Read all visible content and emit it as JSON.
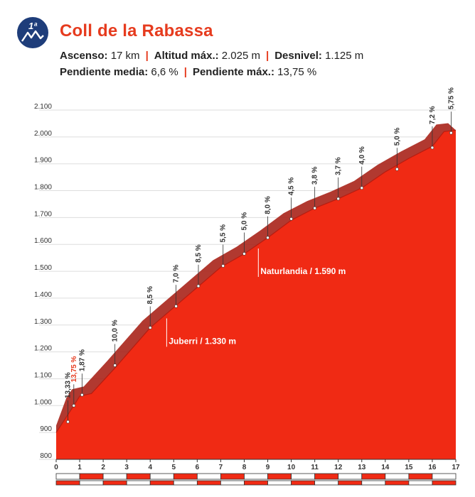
{
  "header": {
    "category_badge": "1ª",
    "title": "Coll de la Rabassa",
    "stats": [
      {
        "label": "Ascenso:",
        "value": "17 km"
      },
      {
        "label": "Altitud máx.:",
        "value": "2.025 m"
      },
      {
        "label": "Desnivel:",
        "value": "1.125 m"
      },
      {
        "label": "Pendiente media:",
        "value": "6,6 %"
      },
      {
        "label": "Pendiente máx.:",
        "value": "13,75 %"
      }
    ]
  },
  "colors": {
    "title": "#e63b1e",
    "badge": "#1e3d7a",
    "profile_fill": "#f02a14",
    "profile_top": "#a9231a"
  },
  "chart_data": {
    "type": "area",
    "title": "",
    "xlabel": "",
    "ylabel": "",
    "x_unit": "km",
    "y_unit": "m",
    "xlim": [
      0,
      17
    ],
    "ylim": [
      800,
      2100
    ],
    "grid": true,
    "x_ticks": [
      "0",
      "1",
      "2",
      "3",
      "4",
      "5",
      "6",
      "7",
      "8",
      "9",
      "10",
      "11",
      "12",
      "13",
      "14",
      "15",
      "16",
      "17"
    ],
    "y_ticks": [
      "800",
      "900",
      "1.000",
      "1.100",
      "1.200",
      "1.300",
      "1.400",
      "1.500",
      "1.600",
      "1.700",
      "1.800",
      "1.900",
      "2.000",
      "2.100"
    ],
    "y_tick_values": [
      800,
      900,
      1000,
      1100,
      1200,
      1300,
      1400,
      1500,
      1600,
      1700,
      1800,
      1900,
      2000,
      2100
    ],
    "series": [
      {
        "x": [
          0,
          0.75,
          1,
          1.5,
          2.5,
          4,
          5,
          6,
          7,
          8,
          9,
          10,
          11,
          12,
          13,
          14,
          15,
          16,
          16.5,
          17
        ],
        "y": [
          900,
          1000,
          1035,
          1045,
          1140,
          1290,
          1365,
          1440,
          1515,
          1565,
          1625,
          1690,
          1735,
          1770,
          1810,
          1870,
          1920,
          1965,
          2020,
          2025
        ]
      }
    ],
    "gradients": [
      {
        "x": 0.5,
        "y": 940,
        "label": "13,33 %",
        "highlight": false
      },
      {
        "x": 0.75,
        "y": 1000,
        "label": "13,75 %",
        "highlight": true
      },
      {
        "x": 1.1,
        "y": 1040,
        "label": "1,87 %",
        "highlight": false
      },
      {
        "x": 2.5,
        "y": 1150,
        "label": "10,0 %",
        "highlight": false
      },
      {
        "x": 4,
        "y": 1290,
        "label": "8,5 %",
        "highlight": false
      },
      {
        "x": 5.1,
        "y": 1370,
        "label": "7,0 %",
        "highlight": false
      },
      {
        "x": 6.05,
        "y": 1445,
        "label": "8,5 %",
        "highlight": false
      },
      {
        "x": 7.1,
        "y": 1520,
        "label": "5,5 %",
        "highlight": false
      },
      {
        "x": 8,
        "y": 1565,
        "label": "5,0 %",
        "highlight": false
      },
      {
        "x": 9,
        "y": 1625,
        "label": "8,0 %",
        "highlight": false
      },
      {
        "x": 10,
        "y": 1695,
        "label": "4,5 %",
        "highlight": false
      },
      {
        "x": 11,
        "y": 1735,
        "label": "3,8 %",
        "highlight": false
      },
      {
        "x": 12,
        "y": 1770,
        "label": "3,7 %",
        "highlight": false
      },
      {
        "x": 13,
        "y": 1810,
        "label": "4,0 %",
        "highlight": false
      },
      {
        "x": 14.5,
        "y": 1880,
        "label": "5,0 %",
        "highlight": false
      },
      {
        "x": 16,
        "y": 1960,
        "label": "7,2 %",
        "highlight": false
      },
      {
        "x": 16.8,
        "y": 2015,
        "label": "5,75 %",
        "highlight": false
      }
    ],
    "annotations": [
      {
        "x": 4.7,
        "y": 1330,
        "label": "Juberri / 1.330 m"
      },
      {
        "x": 8.6,
        "y": 1590,
        "label": "Naturlandia / 1.590 m"
      }
    ]
  }
}
